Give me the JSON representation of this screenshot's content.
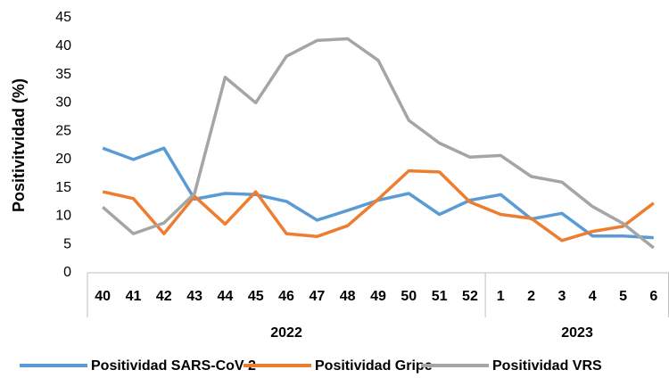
{
  "chart_data": {
    "type": "line",
    "y_label": "Positivitvidad (%)",
    "groups": [
      {
        "label": "2022",
        "categories": [
          "40",
          "41",
          "42",
          "43",
          "44",
          "45",
          "46",
          "47",
          "48",
          "49",
          "50",
          "51",
          "52"
        ]
      },
      {
        "label": "2023",
        "categories": [
          "1",
          "2",
          "3",
          "4",
          "5",
          "6"
        ]
      }
    ],
    "series": [
      {
        "name": "Positividad SARS-CoV-2",
        "color": "#5b9bd5",
        "values": [
          22,
          20,
          22,
          13,
          14,
          13.8,
          12.6,
          9.3,
          11,
          12.8,
          14,
          10.3,
          12.8,
          13.8,
          9.5,
          10.5,
          6.5,
          6.5,
          6.2
        ]
      },
      {
        "name": "Positividad Gripe",
        "color": "#ed7d31",
        "values": [
          14.3,
          13.1,
          6.9,
          13.5,
          8.6,
          14.3,
          6.9,
          6.4,
          8.3,
          13,
          18,
          17.8,
          12.5,
          10.3,
          9.6,
          5.7,
          7.3,
          8.2,
          12.3
        ]
      },
      {
        "name": "Positividad VRS",
        "color": "#a5a5a5",
        "values": [
          11.6,
          6.9,
          8.8,
          14,
          34.5,
          30,
          38.2,
          41,
          41.3,
          37.5,
          26.9,
          22.9,
          20.4,
          20.7,
          17,
          16,
          11.7,
          8.7,
          4.4
        ]
      }
    ],
    "ylim": [
      0,
      45
    ],
    "yticks": [
      0,
      5,
      10,
      15,
      20,
      25,
      30,
      35,
      40,
      45
    ],
    "grid": false,
    "legend": "bottom"
  }
}
